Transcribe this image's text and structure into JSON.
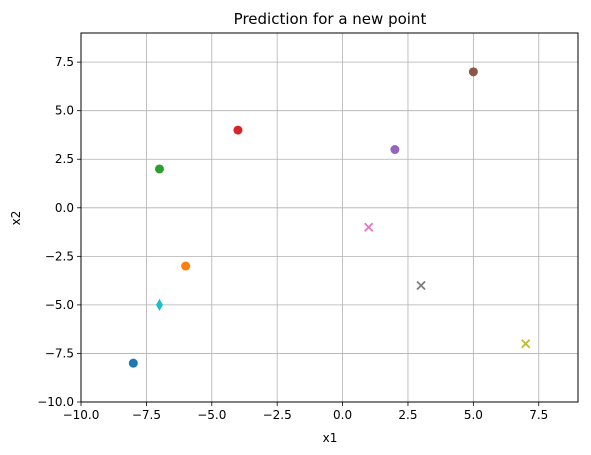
{
  "chart_data": {
    "type": "scatter",
    "title": "Prediction for a new point",
    "xlabel": "x1",
    "ylabel": "x2",
    "xlim": [
      -10,
      9
    ],
    "ylim": [
      -10,
      9
    ],
    "grid": true,
    "xticks": [
      -10.0,
      -7.5,
      -5.0,
      -2.5,
      0.0,
      2.5,
      5.0,
      7.5
    ],
    "yticks": [
      -10.0,
      -7.5,
      -5.0,
      -2.5,
      0.0,
      2.5,
      5.0,
      7.5
    ],
    "xtick_labels": [
      "−10.0",
      "−7.5",
      "−5.0",
      "−2.5",
      "0.0",
      "2.5",
      "5.0",
      "7.5"
    ],
    "ytick_labels": [
      "−10.0",
      "−7.5",
      "−5.0",
      "−2.5",
      "0.0",
      "2.5",
      "5.0",
      "7.5"
    ],
    "points": [
      {
        "x": -8,
        "y": -8,
        "marker": "circle",
        "color": "#1f77b4"
      },
      {
        "x": -6,
        "y": -3,
        "marker": "circle",
        "color": "#ff7f0e"
      },
      {
        "x": -7,
        "y": 2,
        "marker": "circle",
        "color": "#2ca02c"
      },
      {
        "x": -4,
        "y": 4,
        "marker": "circle",
        "color": "#d62728"
      },
      {
        "x": 2,
        "y": 3,
        "marker": "circle",
        "color": "#9467bd"
      },
      {
        "x": 5,
        "y": 7,
        "marker": "circle",
        "color": "#8c564b"
      },
      {
        "x": 1,
        "y": -1,
        "marker": "x",
        "color": "#e377c2"
      },
      {
        "x": 3,
        "y": -4,
        "marker": "x",
        "color": "#7f7f7f"
      },
      {
        "x": 7,
        "y": -7,
        "marker": "x",
        "color": "#bcbd22"
      },
      {
        "x": -7,
        "y": -5,
        "marker": "diamond",
        "color": "#17becf"
      }
    ]
  }
}
